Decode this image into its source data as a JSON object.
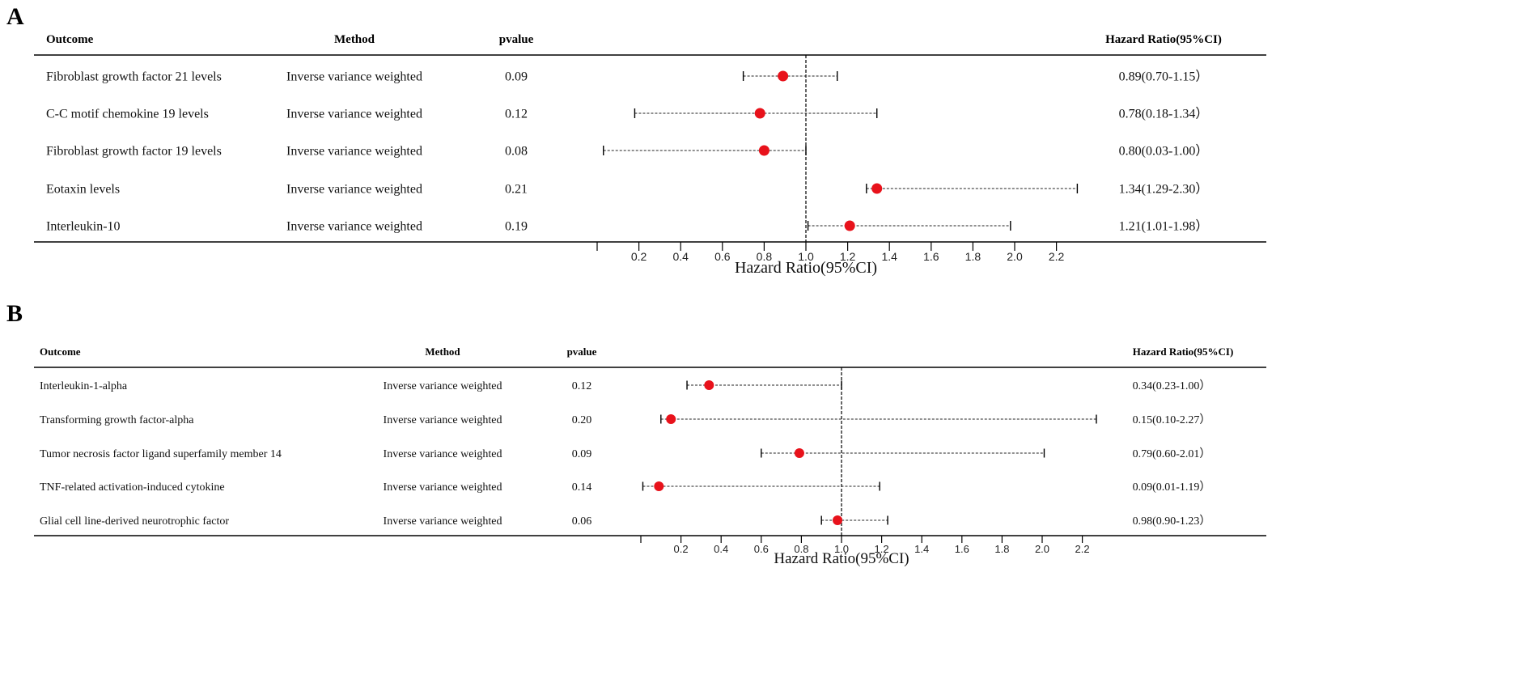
{
  "chart_data": [
    {
      "type": "forest",
      "panel_label": "A",
      "headers": {
        "outcome": "Outcome",
        "method": "Method",
        "pvalue": "pvalue",
        "hr": "Hazard Ratio(95%CI)"
      },
      "xlabel": "Hazard Ratio(95%CI)",
      "xticks": [
        "0.2",
        "0.4",
        "0.6",
        "0.8",
        "1.0",
        "1.2",
        "1.4",
        "1.6",
        "1.8",
        "2.0",
        "2.2"
      ],
      "reference_line": 1.0,
      "point_color": "#e8121b",
      "rows": [
        {
          "outcome": "Fibroblast growth factor 21 levels",
          "method": "Inverse variance weighted",
          "pvalue": "0.09",
          "hr": 0.89,
          "lower": 0.7,
          "upper": 1.15,
          "hr_text": "0.89(0.70-1.15）"
        },
        {
          "outcome": "C-C motif chemokine 19 levels",
          "method": "Inverse variance weighted",
          "pvalue": "0.12",
          "hr": 0.78,
          "lower": 0.18,
          "upper": 1.34,
          "hr_text": "0.78(0.18-1.34）"
        },
        {
          "outcome": "Fibroblast growth factor 19 levels",
          "method": "Inverse variance weighted",
          "pvalue": "0.08",
          "hr": 0.8,
          "lower": 0.03,
          "upper": 1.0,
          "hr_text": "0.80(0.03-1.00）"
        },
        {
          "outcome": "Eotaxin levels",
          "method": "Inverse variance weighted",
          "pvalue": "0.21",
          "hr": 1.34,
          "lower": 1.29,
          "upper": 2.3,
          "hr_text": "1.34(1.29-2.30）"
        },
        {
          "outcome": "Interleukin-10",
          "method": "Inverse variance weighted",
          "pvalue": "0.19",
          "hr": 1.21,
          "lower": 1.01,
          "upper": 1.98,
          "hr_text": "1.21(1.01-1.98）"
        }
      ]
    },
    {
      "type": "forest",
      "panel_label": "B",
      "headers": {
        "outcome": "Outcome",
        "method": "Method",
        "pvalue": "pvalue",
        "hr": "Hazard Ratio(95%CI)"
      },
      "xlabel": "Hazard Ratio(95%CI)",
      "xticks": [
        "0.2",
        "0.4",
        "0.6",
        "0.8",
        "1.0",
        "1.2",
        "1.4",
        "1.6",
        "1.8",
        "2.0",
        "2.2"
      ],
      "reference_line": 1.0,
      "point_color": "#e8121b",
      "rows": [
        {
          "outcome": "Interleukin-1-alpha",
          "method": "Inverse variance weighted",
          "pvalue": "0.12",
          "hr": 0.34,
          "lower": 0.23,
          "upper": 1.0,
          "hr_text": "0.34(0.23-1.00）"
        },
        {
          "outcome": "Transforming growth factor-alpha",
          "method": "Inverse variance weighted",
          "pvalue": "0.20",
          "hr": 0.15,
          "lower": 0.1,
          "upper": 2.27,
          "hr_text": "0.15(0.10-2.27）"
        },
        {
          "outcome": "Tumor necrosis factor ligand superfamily member 14",
          "method": "Inverse variance weighted",
          "pvalue": "0.09",
          "hr": 0.79,
          "lower": 0.6,
          "upper": 2.01,
          "hr_text": "0.79(0.60-2.01）"
        },
        {
          "outcome": "TNF-related activation-induced cytokine",
          "method": "Inverse variance weighted",
          "pvalue": "0.14",
          "hr": 0.09,
          "lower": 0.01,
          "upper": 1.19,
          "hr_text": "0.09(0.01-1.19）"
        },
        {
          "outcome": "Glial cell line-derived neurotrophic factor",
          "method": "Inverse variance weighted",
          "pvalue": "0.06",
          "hr": 0.98,
          "lower": 0.9,
          "upper": 1.23,
          "hr_text": "0.98(0.90-1.23）"
        }
      ]
    }
  ]
}
